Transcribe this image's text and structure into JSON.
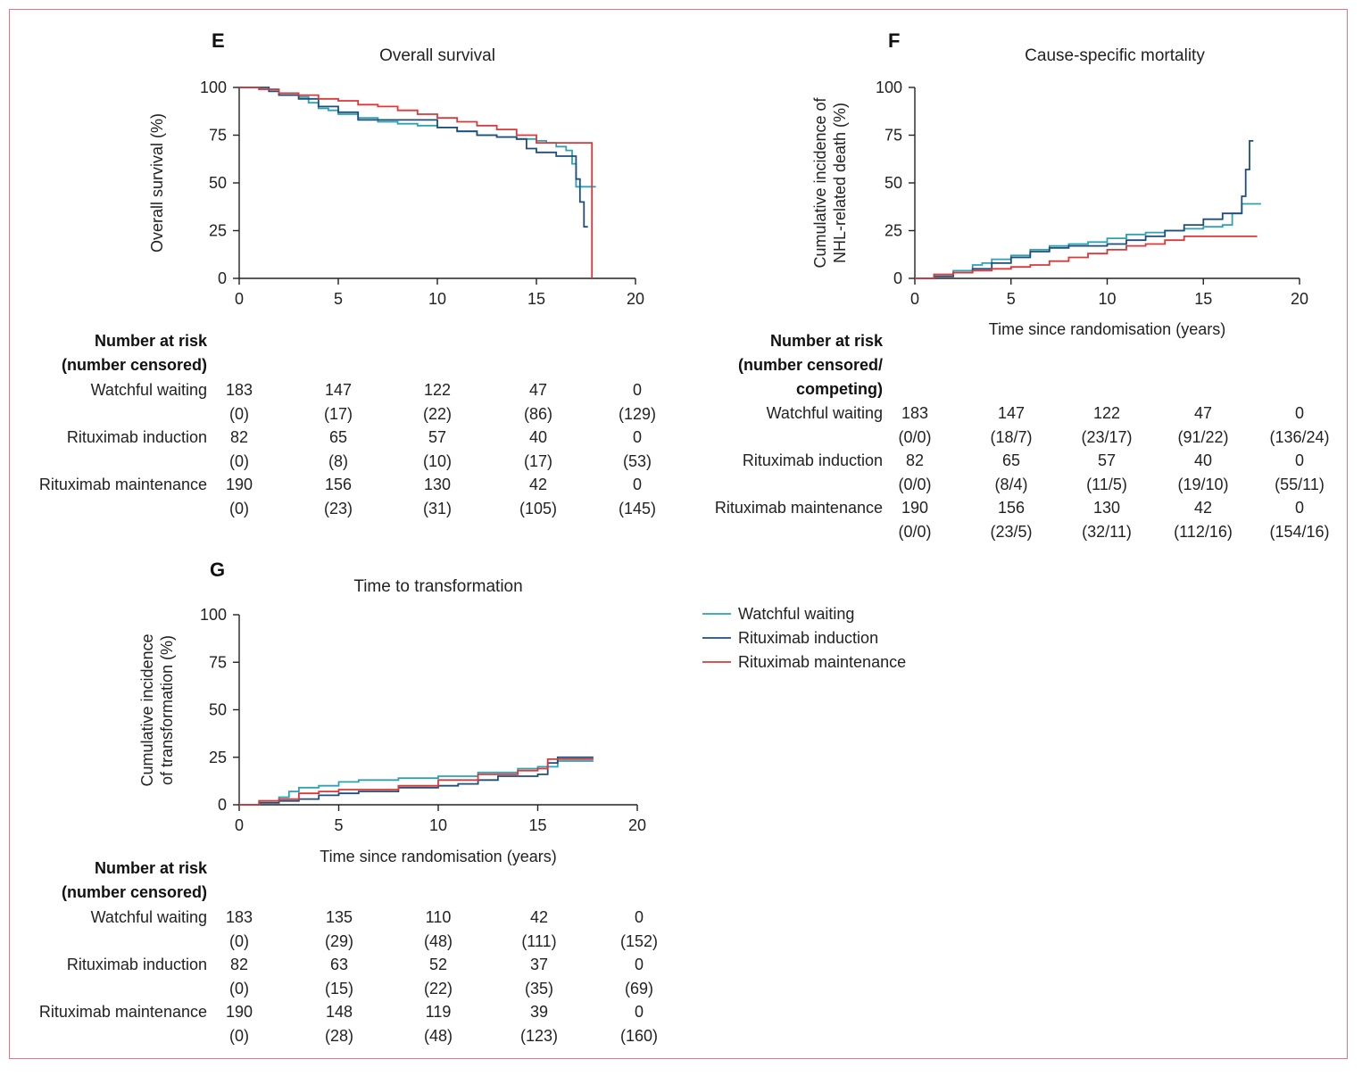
{
  "colors": {
    "watchful_waiting": "#2aa3b5",
    "rituximab_induction": "#1f4e79",
    "rituximab_maintenance": "#d9393a",
    "frame": "#d9768a"
  },
  "legend": {
    "items": [
      {
        "label": "Watchful waiting",
        "color": "#2aa3b5"
      },
      {
        "label": "Rituximab induction",
        "color": "#1f4e79"
      },
      {
        "label": "Rituximab maintenance",
        "color": "#d9393a"
      }
    ]
  },
  "chart_data": [
    {
      "id": "E",
      "letter": "E",
      "type": "line",
      "step": true,
      "title": "Overall survival",
      "xlabel": "",
      "ylabel": "Overall survival (%)",
      "xlim": [
        0,
        20
      ],
      "ylim": [
        0,
        100
      ],
      "xticks": [
        0,
        5,
        10,
        15,
        20
      ],
      "yticks": [
        0,
        25,
        50,
        75,
        100
      ],
      "series": [
        {
          "name": "Watchful waiting",
          "color": "#2aa3b5",
          "x": [
            0,
            1,
            2,
            3,
            3.5,
            4,
            4.5,
            5,
            6,
            7,
            8,
            9,
            10,
            11,
            12,
            13,
            14,
            15,
            15.5,
            16,
            16.5,
            16.8,
            17,
            17.5,
            18
          ],
          "y": [
            100,
            99,
            97,
            95,
            92,
            89,
            88,
            86,
            84,
            82,
            81,
            80,
            79,
            77,
            75,
            74,
            73,
            72,
            71,
            69,
            67,
            60,
            48,
            48,
            48
          ]
        },
        {
          "name": "Rituximab induction",
          "color": "#1f4e79",
          "x": [
            0,
            1.5,
            2,
            3,
            4,
            5,
            6,
            8,
            10,
            11,
            12,
            13,
            14,
            14.5,
            15,
            16,
            16.5,
            17,
            17.2,
            17.4,
            17.6
          ],
          "y": [
            100,
            98,
            96,
            94,
            90,
            87,
            83,
            83,
            79,
            77,
            75,
            74,
            73,
            68,
            66,
            64,
            64,
            52,
            40,
            27,
            27
          ]
        },
        {
          "name": "Rituximab maintenance",
          "color": "#d9393a",
          "x": [
            0,
            1,
            2,
            3,
            4,
            5,
            6,
            7,
            8,
            9,
            10,
            11,
            12,
            13,
            14,
            15,
            17.8,
            17.8
          ],
          "y": [
            100,
            99,
            97,
            96,
            94,
            93,
            91,
            90,
            88,
            86,
            84,
            82,
            80,
            78,
            75,
            71,
            71,
            0
          ]
        }
      ],
      "risk_table": {
        "header": [
          "Number at risk",
          "(number censored)"
        ],
        "time_points": [
          0,
          5,
          10,
          15,
          20
        ],
        "rows": [
          {
            "arm": "Watchful waiting",
            "at_risk": [
              "183",
              "147",
              "122",
              "47",
              "0"
            ],
            "censored": [
              "(0)",
              "(17)",
              "(22)",
              "(86)",
              "(129)"
            ]
          },
          {
            "arm": "Rituximab induction",
            "at_risk": [
              "82",
              "65",
              "57",
              "40",
              "0"
            ],
            "censored": [
              "(0)",
              "(8)",
              "(10)",
              "(17)",
              "(53)"
            ]
          },
          {
            "arm": "Rituximab maintenance",
            "at_risk": [
              "190",
              "156",
              "130",
              "42",
              "0"
            ],
            "censored": [
              "(0)",
              "(23)",
              "(31)",
              "(105)",
              "(145)"
            ]
          }
        ]
      }
    },
    {
      "id": "F",
      "letter": "F",
      "type": "line",
      "step": true,
      "title": "Cause-specific mortality",
      "xlabel": "Time since randomisation (years)",
      "ylabel": [
        "Cumulative incidence of",
        "NHL-related death (%)"
      ],
      "xlim": [
        0,
        20
      ],
      "ylim": [
        0,
        100
      ],
      "xticks": [
        0,
        5,
        10,
        15,
        20
      ],
      "yticks": [
        0,
        25,
        50,
        75,
        100
      ],
      "series": [
        {
          "name": "Watchful waiting",
          "color": "#2aa3b5",
          "x": [
            0,
            1,
            2,
            3,
            3.5,
            4,
            5,
            6,
            7,
            8,
            9,
            10,
            11,
            12,
            13,
            14,
            15,
            16,
            16.5,
            17,
            18
          ],
          "y": [
            0,
            2,
            4,
            7,
            8,
            10,
            12,
            15,
            17,
            18,
            19,
            21,
            23,
            24,
            25,
            26,
            27,
            28,
            34,
            39,
            39
          ]
        },
        {
          "name": "Rituximab induction",
          "color": "#1f4e79",
          "x": [
            0,
            1,
            2,
            3,
            4,
            5,
            6,
            7,
            8,
            9,
            10,
            11,
            12,
            13,
            14,
            15,
            16,
            17,
            17.2,
            17.4,
            17.6
          ],
          "y": [
            0,
            1,
            3,
            5,
            8,
            11,
            14,
            16,
            17,
            17,
            18,
            20,
            22,
            25,
            28,
            31,
            34,
            43,
            57,
            72,
            72
          ]
        },
        {
          "name": "Rituximab maintenance",
          "color": "#d9393a",
          "x": [
            0,
            1,
            2,
            3,
            4,
            5,
            6,
            7,
            8,
            9,
            10,
            11,
            12,
            13,
            14,
            15,
            17.8
          ],
          "y": [
            0,
            2,
            3,
            4,
            5,
            6,
            7,
            9,
            11,
            13,
            15,
            17,
            18,
            20,
            22,
            22,
            22
          ]
        }
      ],
      "risk_table": {
        "header": [
          "Number at risk",
          "(number censored/",
          "competing)"
        ],
        "time_points": [
          0,
          5,
          10,
          15,
          20
        ],
        "rows": [
          {
            "arm": "Watchful waiting",
            "at_risk": [
              "183",
              "147",
              "122",
              "47",
              "0"
            ],
            "censored": [
              "(0/0)",
              "(18/7)",
              "(23/17)",
              "(91/22)",
              "(136/24)"
            ]
          },
          {
            "arm": "Rituximab induction",
            "at_risk": [
              "82",
              "65",
              "57",
              "40",
              "0"
            ],
            "censored": [
              "(0/0)",
              "(8/4)",
              "(11/5)",
              "(19/10)",
              "(55/11)"
            ]
          },
          {
            "arm": "Rituximab maintenance",
            "at_risk": [
              "190",
              "156",
              "130",
              "42",
              "0"
            ],
            "censored": [
              "(0/0)",
              "(23/5)",
              "(32/11)",
              "(112/16)",
              "(154/16)"
            ]
          }
        ]
      }
    },
    {
      "id": "G",
      "letter": "G",
      "type": "line",
      "step": true,
      "title": "Time to transformation",
      "xlabel": "Time since randomisation (years)",
      "ylabel": [
        "Cumulative incidence",
        "of transformation (%)"
      ],
      "xlim": [
        0,
        20
      ],
      "ylim": [
        0,
        100
      ],
      "xticks": [
        0,
        5,
        10,
        15,
        20
      ],
      "yticks": [
        0,
        25,
        50,
        75,
        100
      ],
      "series": [
        {
          "name": "Watchful waiting",
          "color": "#2aa3b5",
          "x": [
            0,
            1,
            2,
            2.5,
            3,
            4,
            5,
            6,
            8,
            10,
            12,
            14,
            15,
            16,
            17.8
          ],
          "y": [
            0,
            2,
            4,
            7,
            9,
            10,
            12,
            13,
            14,
            15,
            17,
            19,
            20,
            23,
            23
          ]
        },
        {
          "name": "Rituximab induction",
          "color": "#1f4e79",
          "x": [
            0,
            1,
            2,
            3,
            4,
            5,
            6,
            8,
            10,
            11,
            12,
            13,
            15,
            15.5,
            16,
            17.8
          ],
          "y": [
            0,
            1,
            2,
            3,
            5,
            6,
            7,
            9,
            10,
            11,
            13,
            15,
            16,
            22,
            25,
            25
          ]
        },
        {
          "name": "Rituximab maintenance",
          "color": "#d9393a",
          "x": [
            0,
            1,
            2,
            3,
            4,
            5,
            6,
            8,
            10,
            12,
            14,
            15,
            15.5,
            16,
            17.8
          ],
          "y": [
            0,
            2,
            3,
            6,
            7,
            8,
            8,
            10,
            13,
            16,
            18,
            19,
            24,
            24,
            24
          ]
        }
      ],
      "risk_table": {
        "header": [
          "Number at risk",
          "(number censored)"
        ],
        "time_points": [
          0,
          5,
          10,
          15,
          20
        ],
        "rows": [
          {
            "arm": "Watchful waiting",
            "at_risk": [
              "183",
              "135",
              "110",
              "42",
              "0"
            ],
            "censored": [
              "(0)",
              "(29)",
              "(48)",
              "(111)",
              "(152)"
            ]
          },
          {
            "arm": "Rituximab induction",
            "at_risk": [
              "82",
              "63",
              "52",
              "37",
              "0"
            ],
            "censored": [
              "(0)",
              "(15)",
              "(22)",
              "(35)",
              "(69)"
            ]
          },
          {
            "arm": "Rituximab maintenance",
            "at_risk": [
              "190",
              "148",
              "119",
              "39",
              "0"
            ],
            "censored": [
              "(0)",
              "(28)",
              "(48)",
              "(123)",
              "(160)"
            ]
          }
        ]
      }
    }
  ]
}
